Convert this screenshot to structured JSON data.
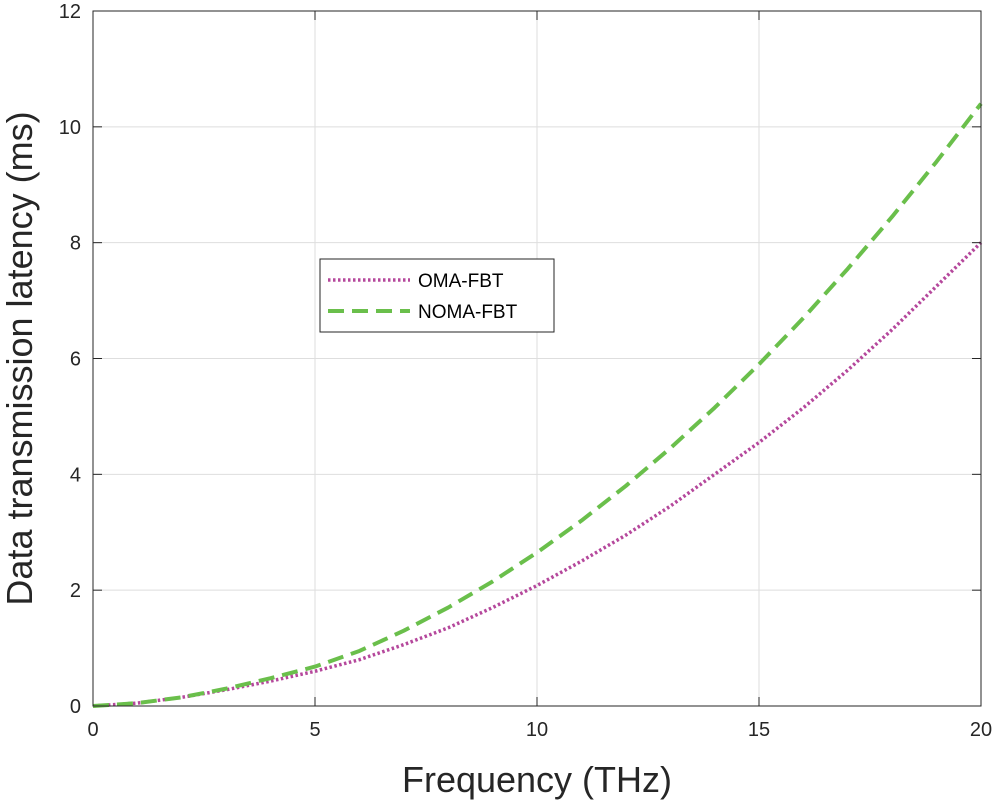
{
  "chart_data": {
    "type": "line",
    "title": "",
    "xlabel": "Frequency (THz)",
    "ylabel": "Data transmission latency (ms)",
    "xlim": [
      0,
      20
    ],
    "ylim": [
      0,
      12
    ],
    "xticks": [
      0,
      5,
      10,
      15,
      20
    ],
    "yticks": [
      0,
      2,
      4,
      6,
      8,
      10,
      12
    ],
    "grid": true,
    "legend_position": "center-left",
    "series": [
      {
        "name": "OMA-FBT",
        "color": "#b5489c",
        "style": "dotted",
        "x": [
          0,
          1,
          2,
          3,
          4,
          5,
          6,
          7,
          8,
          9,
          10,
          11,
          12,
          13,
          14,
          15,
          16,
          17,
          18,
          19,
          20
        ],
        "y": [
          0,
          0.05,
          0.15,
          0.28,
          0.43,
          0.6,
          0.8,
          1.06,
          1.35,
          1.7,
          2.08,
          2.5,
          2.95,
          3.45,
          4.0,
          4.55,
          5.15,
          5.8,
          6.5,
          7.25,
          8.0
        ]
      },
      {
        "name": "NOMA-FBT",
        "color": "#6abf4b",
        "style": "dashed",
        "x": [
          0,
          1,
          2,
          3,
          4,
          5,
          6,
          7,
          8,
          9,
          10,
          11,
          12,
          13,
          14,
          15,
          16,
          17,
          18,
          19,
          20
        ],
        "y": [
          0,
          0.05,
          0.15,
          0.3,
          0.48,
          0.68,
          0.95,
          1.3,
          1.7,
          2.15,
          2.65,
          3.2,
          3.8,
          4.45,
          5.15,
          5.9,
          6.7,
          7.55,
          8.45,
          9.4,
          10.4
        ]
      }
    ]
  }
}
